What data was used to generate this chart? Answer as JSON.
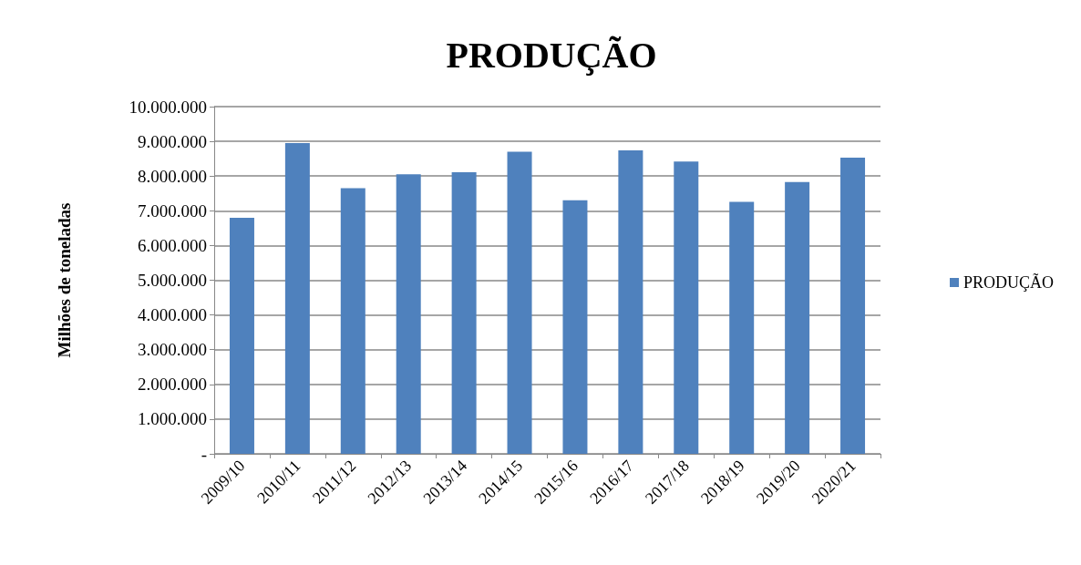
{
  "chart_data": {
    "type": "bar",
    "title": "PRODUÇÃO",
    "ylabel": "Milhões de toneladas",
    "categories": [
      "2009/10",
      "2010/11",
      "2011/12",
      "2012/13",
      "2013/14",
      "2014/15",
      "2015/16",
      "2016/17",
      "2017/18",
      "2018/19",
      "2019/20",
      "2020/21"
    ],
    "series": [
      {
        "name": "PRODUÇÃO",
        "color": "#4f81bd",
        "values": [
          6800000,
          8950000,
          7650000,
          8050000,
          8110000,
          8700000,
          7300000,
          8740000,
          8420000,
          7260000,
          7830000,
          8530000
        ]
      }
    ],
    "ylim": [
      0,
      10000000
    ],
    "yticks": [
      {
        "value": 0,
        "label": "-"
      },
      {
        "value": 1000000,
        "label": "1.000.000"
      },
      {
        "value": 2000000,
        "label": "2.000.000"
      },
      {
        "value": 3000000,
        "label": "3.000.000"
      },
      {
        "value": 4000000,
        "label": "4.000.000"
      },
      {
        "value": 5000000,
        "label": "5.000.000"
      },
      {
        "value": 6000000,
        "label": "6.000.000"
      },
      {
        "value": 7000000,
        "label": "7.000.000"
      },
      {
        "value": 8000000,
        "label": "8.000.000"
      },
      {
        "value": 9000000,
        "label": "9.000.000"
      },
      {
        "value": 10000000,
        "label": "10.000.000"
      }
    ],
    "grid": "y",
    "legend": "right"
  }
}
